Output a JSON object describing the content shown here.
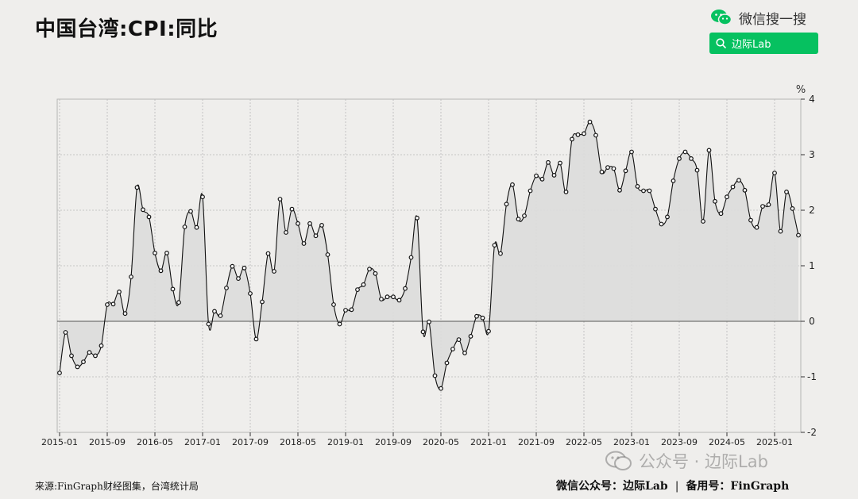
{
  "title": "中国台湾:CPI:同比",
  "wechat": {
    "label": "微信搜一搜",
    "search_text": "边际Lab"
  },
  "source": "来源:FinGraph财经图集，台湾统计局",
  "footer": {
    "left": "微信公众号：边际Lab",
    "sep": "|",
    "right": "备用号：FinGraph"
  },
  "watermark": "公众号 · 边际Lab",
  "colors": {
    "line": "#111111",
    "area": "#dcdcdc",
    "wechat_green": "#06c160",
    "background": "#efeeec"
  },
  "chart_data": {
    "type": "area",
    "unit": "%",
    "ylim": [
      -2,
      4
    ],
    "yticks": [
      "4",
      "3",
      "2",
      "1",
      "0",
      "-1",
      "-2"
    ],
    "xticks": [
      "2015-01",
      "2015-09",
      "2016-05",
      "2017-01",
      "2017-09",
      "2018-05",
      "2019-01",
      "2019-09",
      "2020-05",
      "2021-01",
      "2021-09",
      "2022-05",
      "2023-01",
      "2023-09",
      "2024-05",
      "2025-01"
    ],
    "x_start": "2015-01",
    "x_end": "2025-05",
    "grid": true,
    "values": [
      -0.93,
      -0.2,
      -0.62,
      -0.82,
      -0.73,
      -0.56,
      -0.62,
      -0.44,
      0.3,
      0.31,
      0.53,
      0.14,
      0.8,
      2.41,
      2.01,
      1.88,
      1.23,
      0.91,
      1.23,
      0.58,
      0.34,
      1.7,
      1.98,
      1.69,
      2.24,
      -0.05,
      0.18,
      0.1,
      0.6,
      0.99,
      0.77,
      0.96,
      0.5,
      -0.32,
      0.35,
      1.22,
      0.9,
      2.2,
      1.6,
      2.02,
      1.76,
      1.4,
      1.76,
      1.54,
      1.73,
      1.2,
      0.3,
      -0.05,
      0.2,
      0.21,
      0.57,
      0.66,
      0.94,
      0.86,
      0.4,
      0.44,
      0.44,
      0.38,
      0.59,
      1.15,
      1.86,
      -0.19,
      -0.01,
      -0.98,
      -1.21,
      -0.75,
      -0.5,
      -0.33,
      -0.57,
      -0.27,
      0.09,
      0.06,
      -0.18,
      1.37,
      1.22,
      2.11,
      2.46,
      1.84,
      1.9,
      2.35,
      2.62,
      2.56,
      2.86,
      2.63,
      2.85,
      2.33,
      3.28,
      3.36,
      3.38,
      3.59,
      3.35,
      2.69,
      2.77,
      2.75,
      2.36,
      2.71,
      3.05,
      2.43,
      2.35,
      2.35,
      2.02,
      1.75,
      1.88,
      2.53,
      2.93,
      3.05,
      2.93,
      2.72,
      1.8,
      3.08,
      2.16,
      1.94,
      2.24,
      2.42,
      2.54,
      2.36,
      1.82,
      1.69,
      2.07,
      2.1,
      2.67,
      1.62,
      2.33,
      2.03,
      1.55
    ]
  }
}
